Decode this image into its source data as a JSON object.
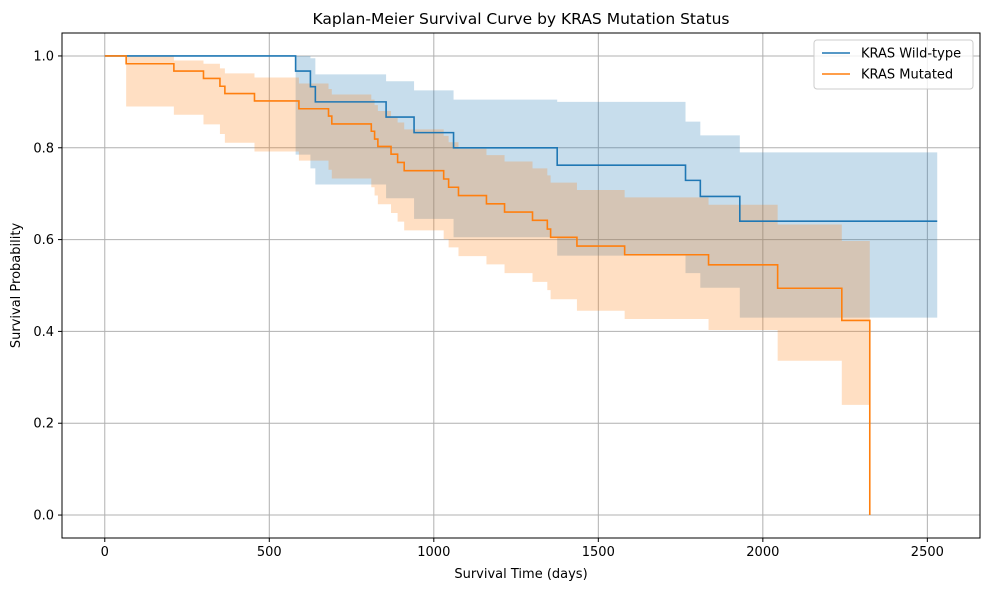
{
  "chart_data": {
    "type": "line",
    "title": "Kaplan-Meier Survival Curve by KRAS Mutation Status",
    "xlabel": "Survival Time (days)",
    "ylabel": "Survival Probability",
    "xlim": [
      -130,
      2660
    ],
    "ylim": [
      -0.05,
      1.05
    ],
    "xticks": [
      0,
      500,
      1000,
      1500,
      2000,
      2500
    ],
    "yticks": [
      0.0,
      0.2,
      0.4,
      0.6,
      0.8,
      1.0
    ],
    "xtick_labels": [
      "0",
      "500",
      "1000",
      "1500",
      "2000",
      "2500"
    ],
    "ytick_labels": [
      "0.0",
      "0.2",
      "0.4",
      "0.6",
      "0.8",
      "1.0"
    ],
    "grid": true,
    "legend_position": "top-right",
    "series": [
      {
        "name": "KRAS Wild-type",
        "color": "#1f77b4",
        "ci_color": "#1f77b4",
        "steps": [
          [
            0,
            1.0
          ],
          [
            580,
            0.967
          ],
          [
            625,
            0.933
          ],
          [
            640,
            0.9
          ],
          [
            855,
            0.867
          ],
          [
            940,
            0.833
          ],
          [
            1060,
            0.8
          ],
          [
            1375,
            0.762
          ],
          [
            1765,
            0.729
          ],
          [
            1810,
            0.694
          ],
          [
            1930,
            0.64
          ],
          [
            2530,
            0.64
          ]
        ],
        "ci_upper": [
          [
            0,
            1.0
          ],
          [
            580,
            1.0
          ],
          [
            625,
            0.995
          ],
          [
            640,
            0.96
          ],
          [
            855,
            0.945
          ],
          [
            940,
            0.925
          ],
          [
            1060,
            0.905
          ],
          [
            1375,
            0.9
          ],
          [
            1765,
            0.857
          ],
          [
            1810,
            0.827
          ],
          [
            1930,
            0.79
          ],
          [
            2530,
            0.79
          ]
        ],
        "ci_lower": [
          [
            0,
            1.0
          ],
          [
            580,
            0.785
          ],
          [
            625,
            0.755
          ],
          [
            640,
            0.72
          ],
          [
            855,
            0.69
          ],
          [
            940,
            0.645
          ],
          [
            1060,
            0.605
          ],
          [
            1375,
            0.565
          ],
          [
            1765,
            0.527
          ],
          [
            1810,
            0.495
          ],
          [
            1930,
            0.43
          ],
          [
            2530,
            0.43
          ]
        ]
      },
      {
        "name": "KRAS Mutated",
        "color": "#ff7f0e",
        "ci_color": "#ff7f0e",
        "steps": [
          [
            0,
            1.0
          ],
          [
            65,
            0.983
          ],
          [
            210,
            0.967
          ],
          [
            300,
            0.951
          ],
          [
            350,
            0.934
          ],
          [
            365,
            0.918
          ],
          [
            455,
            0.902
          ],
          [
            590,
            0.885
          ],
          [
            680,
            0.869
          ],
          [
            690,
            0.852
          ],
          [
            810,
            0.836
          ],
          [
            820,
            0.819
          ],
          [
            830,
            0.803
          ],
          [
            870,
            0.786
          ],
          [
            890,
            0.768
          ],
          [
            910,
            0.75
          ],
          [
            1030,
            0.732
          ],
          [
            1045,
            0.714
          ],
          [
            1075,
            0.696
          ],
          [
            1160,
            0.678
          ],
          [
            1215,
            0.66
          ],
          [
            1300,
            0.642
          ],
          [
            1345,
            0.623
          ],
          [
            1355,
            0.605
          ],
          [
            1435,
            0.586
          ],
          [
            1580,
            0.567
          ],
          [
            1835,
            0.545
          ],
          [
            2045,
            0.494
          ],
          [
            2240,
            0.424
          ],
          [
            2325,
            0.0
          ]
        ],
        "ci_upper": [
          [
            0,
            1.0
          ],
          [
            65,
            1.0
          ],
          [
            210,
            0.99
          ],
          [
            300,
            0.983
          ],
          [
            350,
            0.973
          ],
          [
            365,
            0.962
          ],
          [
            455,
            0.953
          ],
          [
            590,
            0.94
          ],
          [
            680,
            0.928
          ],
          [
            690,
            0.916
          ],
          [
            810,
            0.905
          ],
          [
            820,
            0.893
          ],
          [
            830,
            0.88
          ],
          [
            870,
            0.868
          ],
          [
            890,
            0.855
          ],
          [
            910,
            0.84
          ],
          [
            1030,
            0.826
          ],
          [
            1045,
            0.812
          ],
          [
            1075,
            0.798
          ],
          [
            1160,
            0.784
          ],
          [
            1215,
            0.77
          ],
          [
            1300,
            0.755
          ],
          [
            1345,
            0.74
          ],
          [
            1355,
            0.724
          ],
          [
            1435,
            0.708
          ],
          [
            1580,
            0.692
          ],
          [
            1835,
            0.676
          ],
          [
            2045,
            0.633
          ],
          [
            2240,
            0.597
          ],
          [
            2325,
            0.597
          ]
        ],
        "ci_lower": [
          [
            0,
            1.0
          ],
          [
            65,
            0.89
          ],
          [
            210,
            0.872
          ],
          [
            300,
            0.851
          ],
          [
            350,
            0.83
          ],
          [
            365,
            0.811
          ],
          [
            455,
            0.792
          ],
          [
            590,
            0.772
          ],
          [
            680,
            0.752
          ],
          [
            690,
            0.733
          ],
          [
            810,
            0.714
          ],
          [
            820,
            0.696
          ],
          [
            830,
            0.677
          ],
          [
            870,
            0.658
          ],
          [
            890,
            0.639
          ],
          [
            910,
            0.62
          ],
          [
            1030,
            0.601
          ],
          [
            1045,
            0.583
          ],
          [
            1075,
            0.564
          ],
          [
            1160,
            0.546
          ],
          [
            1215,
            0.527
          ],
          [
            1300,
            0.508
          ],
          [
            1345,
            0.49
          ],
          [
            1355,
            0.47
          ],
          [
            1435,
            0.445
          ],
          [
            1580,
            0.427
          ],
          [
            1835,
            0.403
          ],
          [
            2045,
            0.336
          ],
          [
            2240,
            0.24
          ],
          [
            2325,
            0.24
          ]
        ]
      }
    ]
  }
}
